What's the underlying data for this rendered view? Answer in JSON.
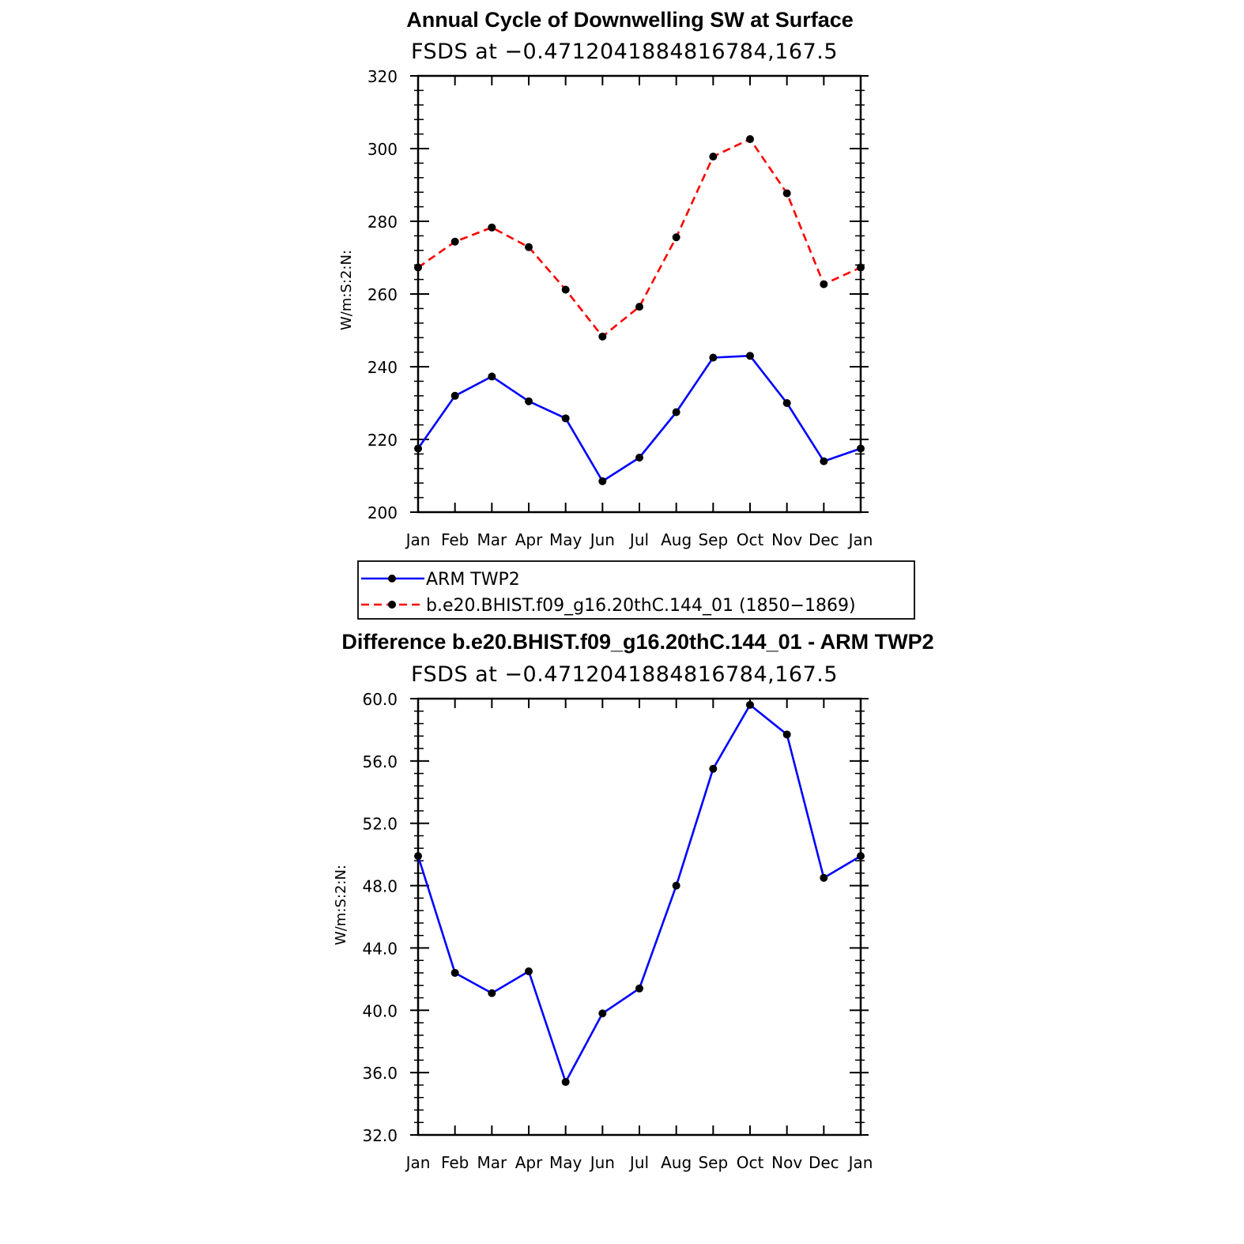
{
  "chart_data": [
    {
      "type": "line",
      "title": "Annual Cycle of Downwelling SW at Surface",
      "subtitle": "FSDS at −0.4712041884816784,167.5",
      "ylabel": "W/m:S:2:N:",
      "xlabel": "",
      "categories": [
        "Jan",
        "Feb",
        "Mar",
        "Apr",
        "May",
        "Jun",
        "Jul",
        "Aug",
        "Sep",
        "Oct",
        "Nov",
        "Dec",
        "Jan"
      ],
      "ylim": [
        200,
        320
      ],
      "yticks": [
        200,
        220,
        240,
        260,
        280,
        300,
        320
      ],
      "ytick_labels": [
        "200",
        "220",
        "240",
        "260",
        "280",
        "300",
        "320"
      ],
      "grid": false,
      "legend_position": "below",
      "series": [
        {
          "name": "ARM TWP2",
          "color": "#0000ff",
          "dash": "solid",
          "marker": "filled-circle",
          "values": [
            217.5,
            232.0,
            237.3,
            230.5,
            225.8,
            208.5,
            215.0,
            227.5,
            242.5,
            243.0,
            230.0,
            214.0,
            217.5
          ]
        },
        {
          "name": "b.e20.BHIST.f09_g16.20thC.144_01 (1850−1869)",
          "color": "#ff0000",
          "dash": "dashed",
          "marker": "filled-circle",
          "values": [
            267.3,
            274.4,
            278.3,
            272.9,
            261.2,
            248.3,
            256.5,
            275.6,
            297.8,
            302.6,
            287.7,
            262.7,
            267.3
          ]
        }
      ]
    },
    {
      "type": "line",
      "title": "Difference b.e20.BHIST.f09_g16.20thC.144_01 - ARM TWP2",
      "subtitle": "FSDS at −0.4712041884816784,167.5",
      "ylabel": "W/m:S:2:N:",
      "xlabel": "",
      "categories": [
        "Jan",
        "Feb",
        "Mar",
        "Apr",
        "May",
        "Jun",
        "Jul",
        "Aug",
        "Sep",
        "Oct",
        "Nov",
        "Dec",
        "Jan"
      ],
      "ylim": [
        32.0,
        60.0
      ],
      "yticks": [
        32,
        36,
        40,
        44,
        48,
        52,
        56,
        60
      ],
      "ytick_labels": [
        "32.0",
        "36.0",
        "40.0",
        "44.0",
        "48.0",
        "52.0",
        "56.0",
        "60.0"
      ],
      "grid": false,
      "series": [
        {
          "color": "#0000ff",
          "dash": "solid",
          "marker": "filled-circle",
          "values": [
            49.9,
            42.4,
            41.1,
            42.5,
            35.4,
            39.8,
            41.4,
            48.0,
            55.5,
            59.6,
            57.7,
            48.5,
            49.9
          ]
        }
      ]
    }
  ]
}
